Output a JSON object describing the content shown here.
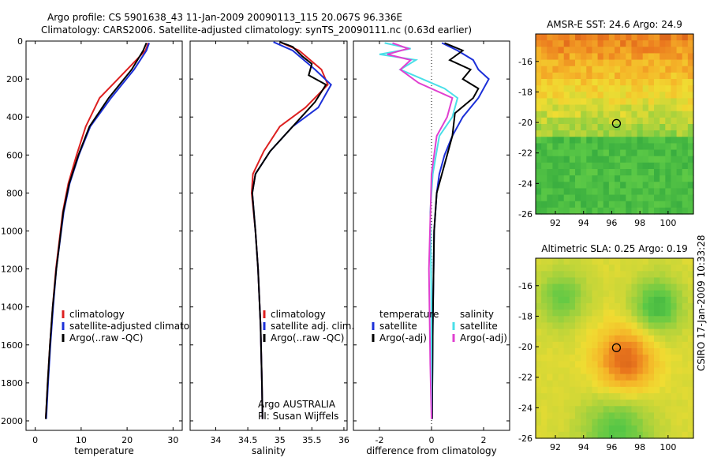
{
  "title_line1": "Argo profile: CS 5901638_43 11-Jan-2009 20090113_115 20.067S 96.336E",
  "title_line2": "Climatology: CARS2006. Satellite-adjusted climatology: synTS_20090111.nc (0.63d earlier)",
  "side_label": "CSIRO 17-Jan-2009 10:33:28",
  "colors": {
    "climatology": "#dd2020",
    "satellite": "#1c30d8",
    "argo": "#000000",
    "temp_diff": "#4adfe8",
    "sal_diff": "#e040d0"
  },
  "chart_data": [
    {
      "type": "line",
      "xlabel": "temperature",
      "xticks": [
        "0",
        "10",
        "20",
        "30"
      ],
      "yticks": [
        "0",
        "200",
        "400",
        "600",
        "800",
        "1000",
        "1200",
        "1400",
        "1600",
        "1800",
        "2000"
      ],
      "xlim": [
        -2,
        32
      ],
      "ylim": [
        2050,
        0
      ],
      "legend": [
        "climatology",
        "satellite-adjusted climatology",
        "Argo(..raw -QC)"
      ],
      "series": [
        {
          "name": "climatology",
          "color_key": "climatology",
          "x": [
            24.6,
            24.0,
            20.0,
            14.0,
            11.0,
            9.0,
            7.2,
            6.0,
            4.5,
            3.8,
            3.2,
            2.7,
            2.3
          ],
          "y": [
            10,
            50,
            150,
            300,
            450,
            600,
            750,
            900,
            1200,
            1400,
            1600,
            1800,
            1990
          ]
        },
        {
          "name": "satellite-adjusted climatology",
          "color_key": "satellite",
          "x": [
            24.8,
            24.2,
            21.5,
            16.5,
            12.0,
            9.5,
            7.5,
            6.2,
            4.6,
            3.9,
            3.3,
            2.8,
            2.4
          ],
          "y": [
            10,
            50,
            150,
            300,
            450,
            600,
            750,
            900,
            1200,
            1400,
            1600,
            1800,
            1990
          ]
        },
        {
          "name": "Argo(..raw -QC)",
          "color_key": "argo",
          "x": [
            24.2,
            23.5,
            21.0,
            16.0,
            11.8,
            9.4,
            7.4,
            6.1,
            4.6,
            3.8,
            3.2,
            2.7,
            2.3
          ],
          "y": [
            10,
            50,
            150,
            300,
            450,
            600,
            750,
            900,
            1200,
            1400,
            1600,
            1800,
            1990
          ]
        }
      ]
    },
    {
      "type": "line",
      "xlabel": "salinity",
      "xticks": [
        "34",
        "34.5",
        "35",
        "35.5",
        "36"
      ],
      "xlim": [
        33.6,
        36.05
      ],
      "ylim": [
        2050,
        0
      ],
      "legend": [
        "climatology",
        "satellite adj. clim.",
        "Argo(..raw -QC)"
      ],
      "annotation": [
        "Argo AUSTRALIA",
        "PI: Susan Wijffels"
      ],
      "series": [
        {
          "name": "climatology",
          "color_key": "climatology",
          "x": [
            35.0,
            35.3,
            35.65,
            35.75,
            35.4,
            35.0,
            34.75,
            34.58,
            34.56,
            34.62,
            34.66,
            34.7,
            34.72,
            34.73
          ],
          "y": [
            5,
            50,
            150,
            230,
            350,
            450,
            580,
            700,
            800,
            1000,
            1200,
            1500,
            1800,
            1990
          ]
        },
        {
          "name": "satellite adj. clim.",
          "color_key": "satellite",
          "x": [
            34.9,
            35.2,
            35.55,
            35.8,
            35.6,
            35.2,
            34.85,
            34.62,
            34.57,
            34.62,
            34.66,
            34.7,
            34.72,
            34.73
          ],
          "y": [
            5,
            50,
            150,
            230,
            350,
            450,
            580,
            700,
            800,
            1000,
            1200,
            1500,
            1800,
            1990
          ]
        },
        {
          "name": "Argo(..raw -QC)",
          "color_key": "argo",
          "x": [
            35.0,
            35.2,
            35.35,
            35.5,
            35.45,
            35.72,
            35.55,
            35.2,
            34.85,
            34.62,
            34.57,
            34.62,
            34.66,
            34.7,
            34.72,
            34.73
          ],
          "y": [
            5,
            30,
            80,
            120,
            180,
            230,
            320,
            450,
            580,
            700,
            800,
            1000,
            1200,
            1500,
            1800,
            1990
          ]
        }
      ]
    },
    {
      "type": "line",
      "xlabel": "difference from climatology",
      "xticks": [
        "-2",
        "0",
        "2"
      ],
      "xlim": [
        -3.0,
        3.0
      ],
      "ylim": [
        2050,
        0
      ],
      "legend_left_title": "temperature",
      "legend_right_title": "salinity",
      "legend_left": [
        "satellite",
        "Argo(-adj)"
      ],
      "legend_right": [
        "satellite",
        "Argo(-adj)"
      ],
      "series": [
        {
          "name": "temperature satellite",
          "color_key": "satellite",
          "x": [
            0.4,
            1.0,
            1.6,
            1.8,
            2.2,
            1.8,
            1.2,
            0.8,
            0.5,
            0.3,
            0.2,
            0.1,
            0.05,
            0.02
          ],
          "y": [
            10,
            50,
            100,
            150,
            200,
            300,
            400,
            500,
            600,
            700,
            800,
            1000,
            1500,
            1990
          ]
        },
        {
          "name": "temperature Argo(-adj)",
          "color_key": "argo",
          "x": [
            0.5,
            1.2,
            0.7,
            1.5,
            1.2,
            1.8,
            1.6,
            0.9,
            0.8,
            0.6,
            0.4,
            0.2,
            0.1,
            0.05,
            0.02
          ],
          "y": [
            10,
            50,
            100,
            150,
            200,
            250,
            300,
            380,
            500,
            600,
            700,
            800,
            1000,
            1500,
            1990
          ]
        },
        {
          "name": "salinity satellite",
          "color_key": "temp_diff",
          "x": [
            -1.8,
            -0.8,
            -2.0,
            -0.6,
            -1.2,
            0.5,
            1.0,
            0.8,
            0.3,
            0.05,
            -0.05,
            0.0,
            0.0
          ],
          "y": [
            10,
            40,
            70,
            100,
            150,
            250,
            300,
            400,
            500,
            700,
            900,
            1400,
            1990
          ]
        },
        {
          "name": "salinity Argo(-adj)",
          "color_key": "sal_diff",
          "x": [
            -1.5,
            -0.9,
            -1.7,
            -0.8,
            -1.2,
            -0.5,
            0.8,
            0.6,
            0.2,
            0.0,
            -0.1,
            -0.05,
            0.0
          ],
          "y": [
            10,
            40,
            70,
            100,
            150,
            220,
            300,
            400,
            500,
            700,
            1200,
            1700,
            1990
          ]
        }
      ]
    },
    {
      "type": "heatmap",
      "title": "AMSR-E SST: 24.6 Argo: 24.9",
      "xticks": [
        "92",
        "94",
        "96",
        "98",
        "100"
      ],
      "yticks": [
        "-16",
        "-18",
        "-20",
        "-22",
        "-24",
        "-26"
      ],
      "xlim": [
        90.6,
        101.8
      ],
      "ylim": [
        -26,
        -14.2
      ],
      "marker": {
        "x": 96.336,
        "y": -20.067
      }
    },
    {
      "type": "heatmap",
      "title": "Altimetric SLA: 0.25 Argo: 0.19",
      "xticks": [
        "92",
        "94",
        "96",
        "98",
        "100"
      ],
      "yticks": [
        "-16",
        "-18",
        "-20",
        "-22",
        "-24",
        "-26"
      ],
      "xlim": [
        90.6,
        101.8
      ],
      "ylim": [
        -26,
        -14.2
      ],
      "marker": {
        "x": 96.336,
        "y": -20.067
      }
    }
  ]
}
